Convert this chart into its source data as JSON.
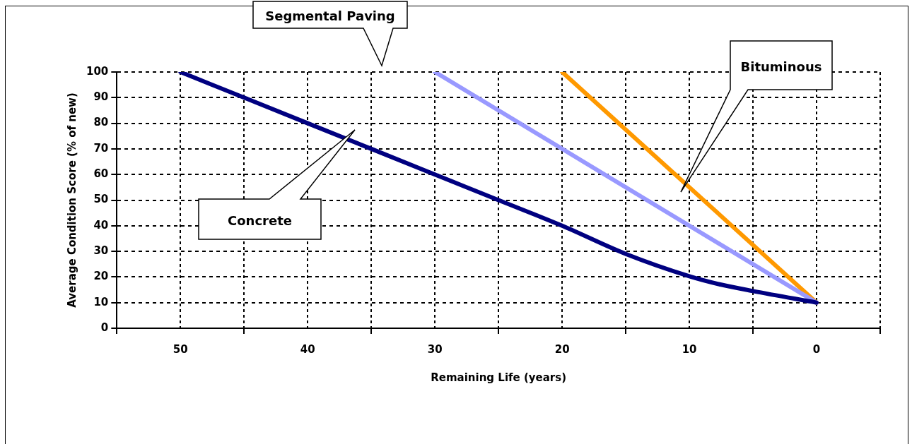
{
  "chart_data": {
    "type": "line",
    "xlabel": "Remaining Life (years)",
    "ylabel": "Average Condition Score (% of new)",
    "xlim": [
      55,
      -5
    ],
    "xticks": [
      {
        "value": 55,
        "label": null
      },
      50,
      {
        "value": 45,
        "label": null
      },
      40,
      {
        "value": 35,
        "label": null
      },
      30,
      {
        "value": 25,
        "label": null
      },
      20,
      {
        "value": 15,
        "label": null
      },
      10,
      {
        "value": 5,
        "label": null
      },
      0,
      {
        "value": -5,
        "label": null
      }
    ],
    "ylim": [
      0,
      100
    ],
    "yticks": [
      0,
      10,
      20,
      30,
      40,
      50,
      60,
      70,
      80,
      90,
      100
    ],
    "grid": true,
    "legend": false,
    "marker": "none",
    "line_style": "solid",
    "series": [
      {
        "color": "#000080",
        "x": [
          50,
          45,
          40,
          35,
          30,
          25,
          20,
          15,
          10,
          7.5,
          5,
          0
        ],
        "values": [
          100,
          90,
          80,
          70,
          60,
          50,
          40,
          29,
          20.3,
          17,
          14.5,
          10
        ]
      },
      {
        "color": "#9999ff",
        "x": [
          30,
          0
        ],
        "values": [
          100,
          10
        ]
      },
      {
        "color": "#ff9900",
        "x": [
          20,
          0
        ],
        "values": [
          100,
          10
        ]
      }
    ],
    "annotations": [
      "Concrete",
      "Segmental Paving",
      "Bituminous"
    ]
  }
}
